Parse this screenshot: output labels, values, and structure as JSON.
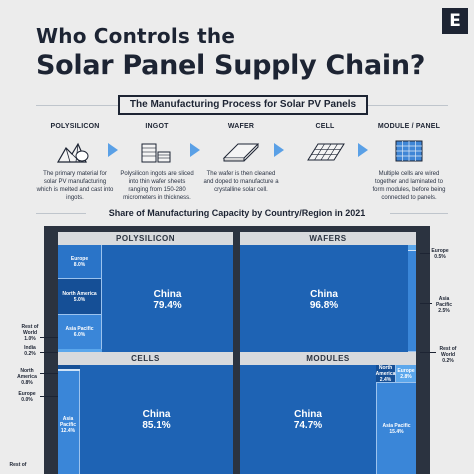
{
  "header": {
    "title_line1": "Who Controls the",
    "title_line2": "Solar Panel Supply Chain?",
    "brand_mark": "E"
  },
  "process": {
    "title": "The Manufacturing Process for Solar PV Panels",
    "steps": [
      {
        "label": "POLYSILICON",
        "desc": "The primary material for solar PV manufacturing which is melted and cast into ingots.",
        "icon": "polysilicon-icon"
      },
      {
        "label": "INGOT",
        "desc": "Polysilicon ingots are sliced into thin wafer sheets ranging from 150-280 micrometers in thickness.",
        "icon": "ingot-icon"
      },
      {
        "label": "WAFER",
        "desc": "The wafer is then cleaned and doped to manufacture a crystalline solar cell.",
        "icon": "wafer-icon"
      },
      {
        "label": "CELL",
        "desc": "",
        "icon": "cell-icon"
      },
      {
        "label": "MODULE / PANEL",
        "desc": "Multiple cells are wired together and laminated to form modules, before being connected to panels.",
        "icon": "module-icon"
      }
    ]
  },
  "colors": {
    "background": "#ececec",
    "navy": "#1d2433",
    "china_blue": "#1e63b4",
    "mid_blue": "#2a74c8",
    "dark_blue": "#154f96",
    "light_blue": "#5ba7ec",
    "frame": "#2b3340",
    "arrow": "#5aa0e6"
  },
  "chart_data": {
    "type": "treemap",
    "title": "Share of Manufacturing Capacity by Country/Region in 2021",
    "panels": [
      {
        "name": "POLYSILICON",
        "segments": [
          {
            "label": "China",
            "value": 79.4,
            "display": "79.4%"
          },
          {
            "label": "Europe",
            "value": 8.0,
            "display": "8.0%"
          },
          {
            "label": "North America",
            "value": 5.0,
            "display": "5.0%"
          },
          {
            "label": "Asia Pacific",
            "value": 6.0,
            "display": "6.0%"
          },
          {
            "label": "Rest of World",
            "value": 1.0,
            "display": "1.0%"
          },
          {
            "label": "India",
            "value": 0.2,
            "display": "0.2%"
          }
        ]
      },
      {
        "name": "WAFERS",
        "segments": [
          {
            "label": "China",
            "value": 96.8,
            "display": "96.8%"
          },
          {
            "label": "Europe",
            "value": 0.5,
            "display": "0.5%"
          },
          {
            "label": "Asia Pacific",
            "value": 2.5,
            "display": "2.5%"
          },
          {
            "label": "Rest of World",
            "value": 0.2,
            "display": "0.2%"
          }
        ]
      },
      {
        "name": "CELLS",
        "segments": [
          {
            "label": "China",
            "value": 85.1,
            "display": "85.1%"
          },
          {
            "label": "North America",
            "value": 0.8,
            "display": "0.8%"
          },
          {
            "label": "Europe",
            "value": 0.0,
            "display": "0.0%"
          },
          {
            "label": "Asia Pacific",
            "value": 12.4,
            "display": "12.4%"
          },
          {
            "label": "Rest of",
            "value": null,
            "display": ""
          }
        ]
      },
      {
        "name": "MODULES",
        "segments": [
          {
            "label": "China",
            "value": 74.7,
            "display": "74.7%"
          },
          {
            "label": "North America",
            "value": 2.4,
            "display": "2.4%"
          },
          {
            "label": "Europe",
            "value": 2.8,
            "display": "2.8%"
          },
          {
            "label": "Asia Pacific",
            "value": 15.4,
            "display": "15.4%"
          }
        ]
      }
    ]
  }
}
